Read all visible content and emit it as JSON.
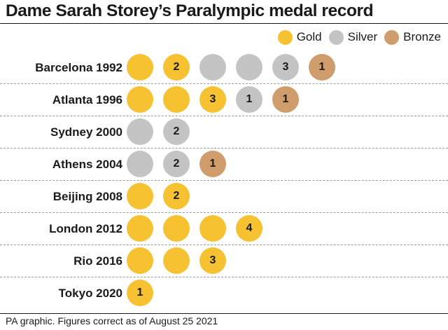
{
  "chart_data": {
    "type": "table",
    "title": "Dame Sarah Storey’s Paralympic medal record",
    "legend": [
      {
        "key": "gold",
        "label": "Gold",
        "color": "#f6c232"
      },
      {
        "key": "silver",
        "label": "Silver",
        "color": "#c4c4c4"
      },
      {
        "key": "bronze",
        "label": "Bronze",
        "color": "#cf9d6c"
      }
    ],
    "rows": [
      {
        "games": "Barcelona 1992",
        "gold": 2,
        "silver": 3,
        "bronze": 1
      },
      {
        "games": "Atlanta 1996",
        "gold": 3,
        "silver": 1,
        "bronze": 1
      },
      {
        "games": "Sydney 2000",
        "gold": 0,
        "silver": 2,
        "bronze": 0
      },
      {
        "games": "Athens 2004",
        "gold": 0,
        "silver": 2,
        "bronze": 1
      },
      {
        "games": "Beijing 2008",
        "gold": 2,
        "silver": 0,
        "bronze": 0
      },
      {
        "games": "London 2012",
        "gold": 4,
        "silver": 0,
        "bronze": 0
      },
      {
        "games": "Rio 2016",
        "gold": 3,
        "silver": 0,
        "bronze": 0
      },
      {
        "games": "Tokyo 2020",
        "gold": 1,
        "silver": 0,
        "bronze": 0
      }
    ]
  },
  "footer": "PA graphic. Figures correct as of August 25 2021"
}
